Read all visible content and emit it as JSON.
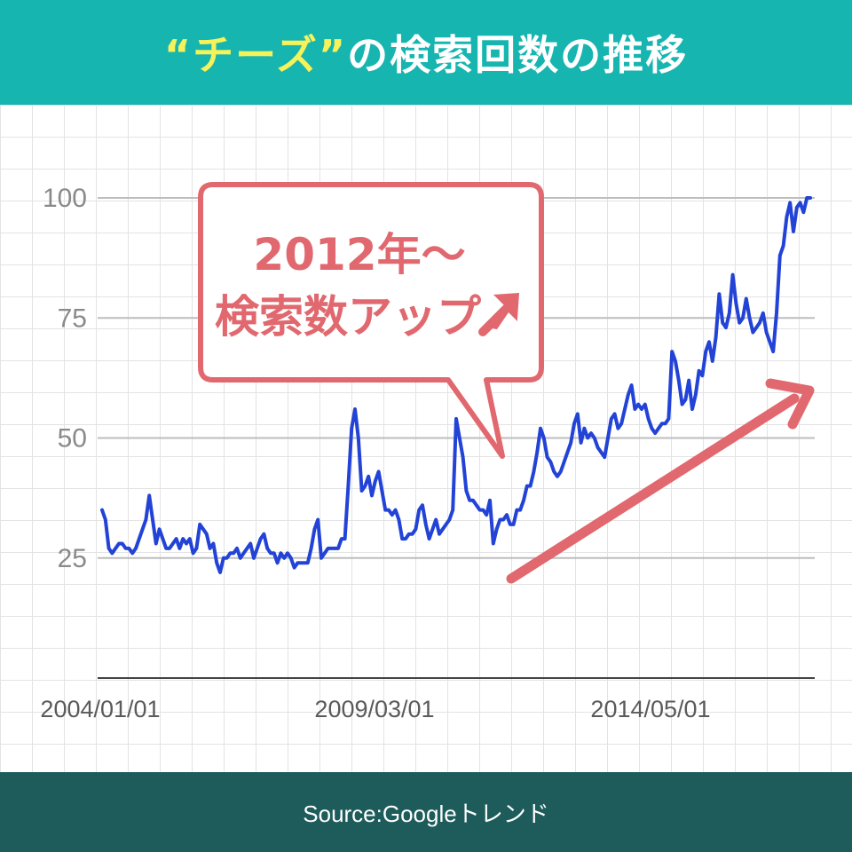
{
  "header": {
    "title_highlight": "“チーズ”",
    "title_rest": "の検索回数の推移",
    "bg_color": "#17b5b0",
    "highlight_color": "#f6f25a"
  },
  "callout": {
    "line1": "2012年〜",
    "line2": "検索数アップ",
    "color": "#e0686e"
  },
  "footer": {
    "source": "Source:Googleトレンド",
    "bg_color": "#1d5c5a"
  },
  "chart_data": {
    "type": "line",
    "title": "“チーズ”の検索回数の推移",
    "xlabel": "",
    "ylabel": "",
    "ylim": [
      0,
      100
    ],
    "y_ticks": [
      25,
      50,
      75,
      100
    ],
    "x_tick_labels": [
      "2004/01/01",
      "2009/03/01",
      "2014/05/01"
    ],
    "grid": true,
    "line_color": "#2243d6",
    "annotation_arrow_color": "#e0686e",
    "series": [
      {
        "values": [
          35,
          33,
          27,
          26,
          27,
          28,
          28,
          27,
          27,
          26,
          27,
          29,
          31,
          33,
          38,
          33,
          28,
          31,
          29,
          27,
          27,
          28,
          29,
          27,
          29,
          28,
          29,
          26,
          27,
          32,
          31,
          30,
          27,
          28,
          24,
          22,
          25,
          25,
          26,
          26,
          27,
          25,
          26,
          27,
          28,
          25,
          27,
          29,
          30,
          27,
          26,
          26,
          24,
          26,
          25,
          26,
          25,
          23,
          24,
          24,
          24,
          24,
          27,
          31,
          33,
          25,
          26,
          27,
          27,
          27,
          27,
          29,
          29,
          40,
          52,
          56,
          50,
          39,
          40,
          42,
          38,
          41,
          43,
          39,
          35,
          35,
          34,
          35,
          33,
          29,
          29,
          30,
          30,
          31,
          35,
          36,
          32,
          29,
          31,
          33,
          30,
          31,
          32,
          33,
          35,
          54,
          50,
          46,
          39,
          37,
          37,
          36,
          35,
          35,
          34,
          37,
          28,
          31,
          33,
          33,
          34,
          32,
          32,
          35,
          35,
          37,
          40,
          40,
          43,
          47,
          52,
          50,
          46,
          45,
          43,
          42,
          43,
          45,
          47,
          49,
          53,
          55,
          49,
          52,
          50,
          51,
          50,
          48,
          47,
          46,
          50,
          54,
          55,
          52,
          53,
          56,
          59,
          61,
          56,
          57,
          56,
          57,
          54,
          52,
          51,
          52,
          53,
          53,
          54,
          68,
          66,
          62,
          57,
          58,
          62,
          56,
          59,
          64,
          63,
          68,
          70,
          66,
          71,
          80,
          74,
          73,
          76,
          84,
          78,
          74,
          75,
          79,
          75,
          72,
          73,
          74,
          76,
          72,
          70,
          68,
          76,
          88,
          90,
          96,
          99,
          93,
          98,
          99,
          97,
          100,
          100
        ]
      }
    ]
  }
}
